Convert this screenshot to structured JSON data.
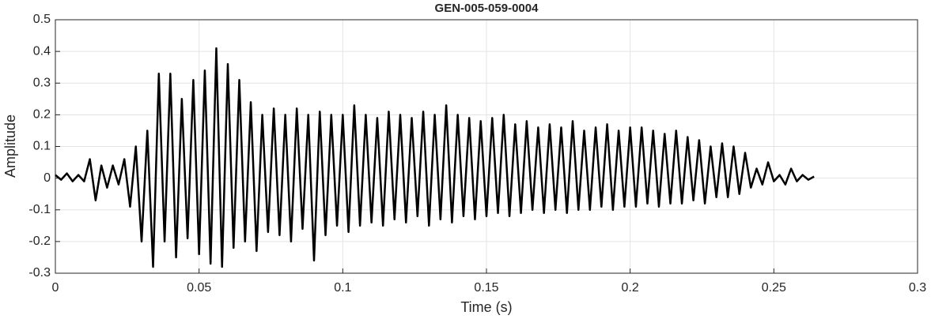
{
  "chart_data": {
    "type": "line",
    "title": "GEN-005-059-0004",
    "xlabel": "Time (s)",
    "ylabel": "Amplitude",
    "color": "#000000",
    "grid": true,
    "xlim": [
      0,
      0.3
    ],
    "xticks": [
      0,
      0.05,
      0.1,
      0.15,
      0.2,
      0.25,
      0.3
    ],
    "ylim": [
      -0.3,
      0.5
    ],
    "yticks": [
      -0.3,
      -0.2,
      -0.1,
      0,
      0.1,
      0.2,
      0.3,
      0.4,
      0.5
    ],
    "x": [
      0,
      0.002,
      0.004,
      0.006,
      0.008,
      0.01,
      0.012,
      0.014,
      0.016,
      0.018,
      0.02,
      0.022,
      0.024,
      0.026,
      0.028,
      0.03,
      0.032,
      0.034,
      0.036,
      0.038,
      0.04,
      0.042,
      0.044,
      0.046,
      0.048,
      0.05,
      0.052,
      0.054,
      0.056,
      0.058,
      0.06,
      0.062,
      0.064,
      0.066,
      0.068,
      0.07,
      0.072,
      0.074,
      0.076,
      0.078,
      0.08,
      0.082,
      0.084,
      0.086,
      0.088,
      0.09,
      0.092,
      0.094,
      0.096,
      0.098,
      0.1,
      0.102,
      0.104,
      0.106,
      0.108,
      0.11,
      0.112,
      0.114,
      0.116,
      0.118,
      0.12,
      0.122,
      0.124,
      0.126,
      0.128,
      0.13,
      0.132,
      0.134,
      0.136,
      0.138,
      0.14,
      0.142,
      0.144,
      0.146,
      0.148,
      0.15,
      0.152,
      0.154,
      0.156,
      0.158,
      0.16,
      0.162,
      0.164,
      0.166,
      0.168,
      0.17,
      0.172,
      0.174,
      0.176,
      0.178,
      0.18,
      0.182,
      0.184,
      0.186,
      0.188,
      0.19,
      0.192,
      0.194,
      0.196,
      0.198,
      0.2,
      0.202,
      0.204,
      0.206,
      0.208,
      0.21,
      0.212,
      0.214,
      0.216,
      0.218,
      0.22,
      0.222,
      0.224,
      0.226,
      0.228,
      0.23,
      0.232,
      0.234,
      0.236,
      0.238,
      0.24,
      0.242,
      0.244,
      0.246,
      0.248,
      0.25,
      0.252,
      0.254,
      0.256,
      0.258,
      0.26,
      0.262,
      0.264
    ],
    "values": [
      0.01,
      -0.005,
      0.015,
      -0.01,
      0.01,
      -0.01,
      0.06,
      -0.07,
      0.04,
      -0.03,
      0.04,
      -0.02,
      0.06,
      -0.09,
      0.1,
      -0.2,
      0.15,
      -0.28,
      0.33,
      -0.2,
      0.33,
      -0.25,
      0.25,
      -0.19,
      0.31,
      -0.24,
      0.34,
      -0.27,
      0.41,
      -0.28,
      0.36,
      -0.22,
      0.31,
      -0.2,
      0.24,
      -0.23,
      0.2,
      -0.17,
      0.22,
      -0.18,
      0.2,
      -0.2,
      0.22,
      -0.16,
      0.2,
      -0.26,
      0.21,
      -0.18,
      0.2,
      -0.15,
      0.2,
      -0.17,
      0.23,
      -0.15,
      0.2,
      -0.14,
      0.19,
      -0.15,
      0.21,
      -0.13,
      0.2,
      -0.14,
      0.19,
      -0.12,
      0.21,
      -0.15,
      0.2,
      -0.13,
      0.23,
      -0.14,
      0.2,
      -0.12,
      0.19,
      -0.13,
      0.18,
      -0.12,
      0.19,
      -0.11,
      0.2,
      -0.12,
      0.17,
      -0.11,
      0.18,
      -0.1,
      0.16,
      -0.11,
      0.17,
      -0.1,
      0.16,
      -0.11,
      0.18,
      -0.1,
      0.15,
      -0.1,
      0.16,
      -0.09,
      0.17,
      -0.1,
      0.15,
      -0.09,
      0.16,
      -0.09,
      0.16,
      -0.08,
      0.15,
      -0.09,
      0.14,
      -0.08,
      0.15,
      -0.08,
      0.13,
      -0.07,
      0.12,
      -0.08,
      0.1,
      -0.06,
      0.11,
      -0.06,
      0.1,
      -0.05,
      0.08,
      -0.03,
      0.03,
      -0.02,
      0.05,
      -0.01,
      0.01,
      -0.02,
      0.03,
      -0.01,
      0.01,
      -0.005,
      0.005
    ]
  }
}
